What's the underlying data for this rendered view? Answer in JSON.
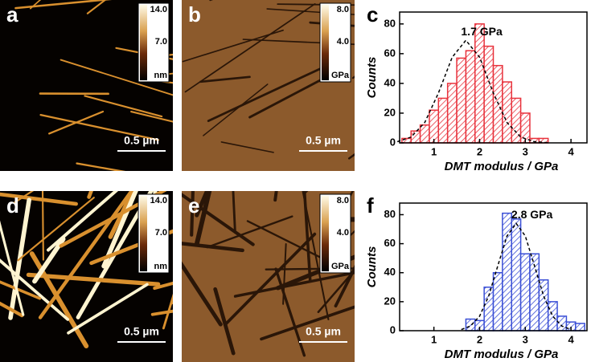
{
  "panels": [
    {
      "label": "a",
      "colorbar": {
        "max": "14.0",
        "mid": "7.0",
        "unit": "nm"
      },
      "scale_bar": "0.5 µm"
    },
    {
      "label": "b",
      "colorbar": {
        "max": "8.0",
        "mid": "4.0",
        "unit": "GPa"
      },
      "scale_bar": "0.5 µm"
    },
    {
      "label": "d",
      "colorbar": {
        "max": "14.0",
        "mid": "7.0",
        "unit": "nm"
      },
      "scale_bar": "0.5 µm"
    },
    {
      "label": "e",
      "colorbar": {
        "max": "8.0",
        "mid": "4.0",
        "unit": "GPa"
      },
      "scale_bar": "0.5 µm"
    }
  ],
  "chart_data": [
    {
      "type": "histogram",
      "panel_label": "c",
      "color": "#e8323c",
      "bins": [
        0.3,
        0.5,
        0.7,
        0.9,
        1.1,
        1.3,
        1.5,
        1.7,
        1.9,
        2.1,
        2.3,
        2.5,
        2.7,
        2.9,
        3.1,
        3.3,
        3.5
      ],
      "values": [
        3,
        8,
        12,
        22,
        30,
        40,
        57,
        62,
        80,
        65,
        52,
        41,
        30,
        20,
        3,
        3
      ],
      "fit": {
        "x": [
          0.2,
          0.5,
          0.8,
          1.1,
          1.4,
          1.7,
          2.0,
          2.3,
          2.6,
          2.9,
          3.2,
          3.5
        ],
        "values": [
          0.8,
          3.9,
          13.7,
          33.6,
          57.6,
          69,
          57.6,
          33.6,
          13.7,
          3.9,
          0.8,
          0.1
        ]
      },
      "annotation": "1.7 GPa",
      "xlabel": "DMT modulus / GPa",
      "ylabel": "Counts",
      "xlim": [
        0.25,
        4.35
      ],
      "ylim": [
        0,
        88
      ],
      "xticks": [
        1,
        2,
        3,
        4
      ],
      "yticks": [
        0,
        20,
        40,
        60,
        80
      ]
    },
    {
      "type": "histogram",
      "panel_label": "f",
      "color": "#3a4fd6",
      "bins": [
        1.7,
        1.9,
        2.1,
        2.3,
        2.5,
        2.7,
        2.9,
        3.1,
        3.3,
        3.5,
        3.7,
        3.9,
        4.1,
        4.3
      ],
      "values": [
        8,
        7,
        30,
        40,
        81,
        77,
        53,
        53,
        35,
        20,
        10,
        6,
        5
      ],
      "fit": {
        "x": [
          1.6,
          1.8,
          2.0,
          2.2,
          2.4,
          2.6,
          2.8,
          3.0,
          3.2,
          3.4,
          3.6,
          3.8,
          4.0
        ],
        "values": [
          0.8,
          3.2,
          10,
          24,
          44.9,
          65.3,
          74,
          65.3,
          44.9,
          24,
          10,
          3.2,
          0.8
        ]
      },
      "annotation": "2.8 GPa",
      "xlabel": "DMT modulus / GPa",
      "ylabel": "Counts",
      "xlim": [
        0.25,
        4.35
      ],
      "ylim": [
        0,
        88
      ],
      "xticks": [
        1,
        2,
        3,
        4
      ],
      "yticks": [
        0,
        20,
        40,
        60,
        80
      ]
    }
  ]
}
